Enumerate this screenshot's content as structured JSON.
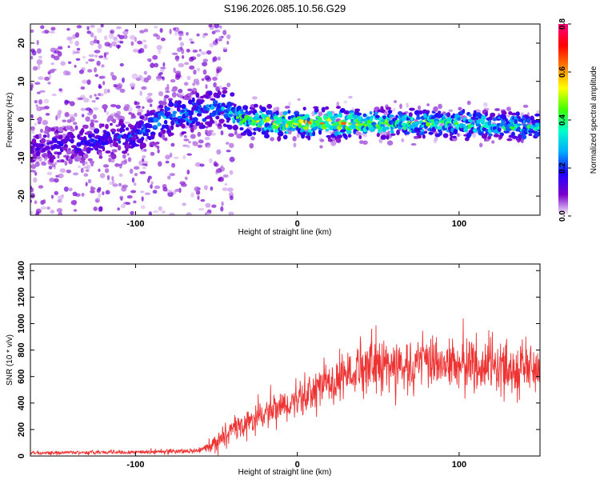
{
  "chart_data": [
    {
      "type": "heatmap",
      "title": "S196.2026.085.10.56.G29",
      "xlabel": "Height of straight line (km)",
      "ylabel": "Frequency (Hz)",
      "xlim": [
        -165,
        150
      ],
      "ylim": [
        -25,
        25
      ],
      "xticks": [
        -100,
        0,
        100
      ],
      "xtick_labels": [
        "-100",
        "0",
        "100"
      ],
      "yticks": [
        -20,
        -10,
        0,
        10,
        20
      ],
      "ytick_labels": [
        "-20",
        "-10",
        "0",
        "10",
        "20"
      ],
      "colorbar": {
        "label": "Normalized spectral amplitude",
        "range": [
          0,
          0.8
        ],
        "ticks": [
          0,
          0.2,
          0.4,
          0.6,
          0.8
        ],
        "tick_labels": [
          "0.0",
          "0.2",
          "0.4",
          "0.6",
          "0.8"
        ],
        "colors": [
          "#ffffff",
          "#7a00cc",
          "#2000ff",
          "#00aaff",
          "#00ffcc",
          "#40ff00",
          "#ffff00",
          "#ff8000",
          "#ff0000",
          "#ff0080"
        ]
      },
      "ridge_profile": [
        {
          "x": -160,
          "f": -7,
          "amp": 0.15
        },
        {
          "x": -130,
          "f": -6,
          "amp": 0.2
        },
        {
          "x": -100,
          "f": -4,
          "amp": 0.22
        },
        {
          "x": -80,
          "f": 1,
          "amp": 0.3
        },
        {
          "x": -60,
          "f": 2,
          "amp": 0.3
        },
        {
          "x": -48,
          "f": 4,
          "amp": 0.28
        },
        {
          "x": -35,
          "f": 0,
          "amp": 0.45
        },
        {
          "x": -10,
          "f": -1,
          "amp": 0.55
        },
        {
          "x": 20,
          "f": -1,
          "amp": 0.6
        },
        {
          "x": 60,
          "f": -1,
          "amp": 0.45
        },
        {
          "x": 100,
          "f": -1,
          "amp": 0.45
        },
        {
          "x": 148,
          "f": -2,
          "amp": 0.4
        }
      ]
    },
    {
      "type": "line",
      "xlabel": "Height of straight line (km)",
      "ylabel": "SNR (10 * v/v)",
      "xlim": [
        -165,
        150
      ],
      "ylim": [
        0,
        1450
      ],
      "xticks": [
        -100,
        0,
        100
      ],
      "xtick_labels": [
        "-100",
        "0",
        "100"
      ],
      "yticks": [
        0,
        200,
        400,
        600,
        800,
        1000,
        1200,
        1400
      ],
      "ytick_labels": [
        "0",
        "200",
        "400",
        "600",
        "800",
        "1000",
        "1200",
        "1400"
      ],
      "series": [
        {
          "name": "SNR",
          "color": "#ee3333",
          "envelope": [
            {
              "x": -165,
              "mean": 25,
              "spread": 20
            },
            {
              "x": -100,
              "mean": 30,
              "spread": 25
            },
            {
              "x": -60,
              "mean": 40,
              "spread": 30
            },
            {
              "x": -48,
              "mean": 120,
              "spread": 120
            },
            {
              "x": -40,
              "mean": 200,
              "spread": 150
            },
            {
              "x": -20,
              "mean": 310,
              "spread": 200
            },
            {
              "x": 0,
              "mean": 420,
              "spread": 220
            },
            {
              "x": 20,
              "mean": 560,
              "spread": 300
            },
            {
              "x": 40,
              "mean": 680,
              "spread": 330
            },
            {
              "x": 80,
              "mean": 700,
              "spread": 330
            },
            {
              "x": 120,
              "mean": 690,
              "spread": 330
            },
            {
              "x": 150,
              "mean": 660,
              "spread": 340
            }
          ]
        }
      ]
    }
  ]
}
